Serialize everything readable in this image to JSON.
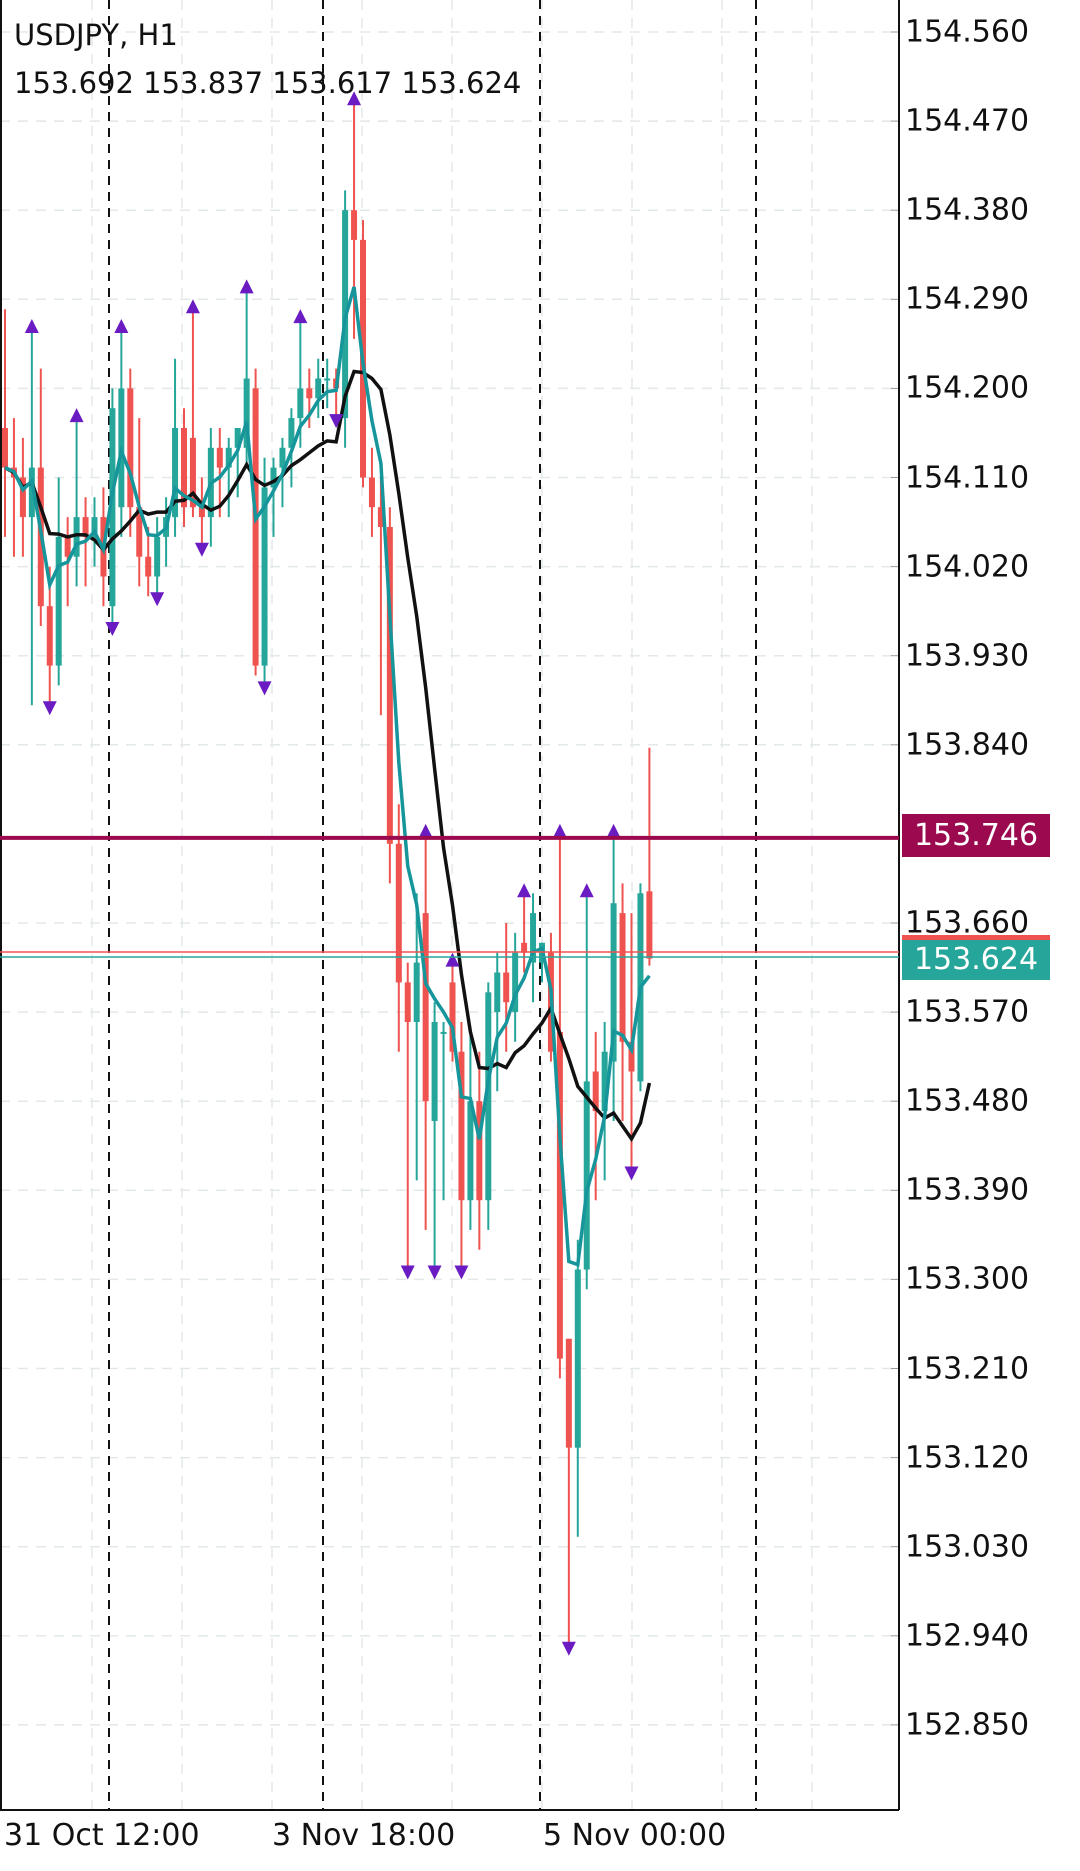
{
  "header": {
    "symbol_timeframe": "USDJPY, H1",
    "ohlc": "153.692 153.837 153.617 153.624"
  },
  "colors": {
    "bull": "#26a69a",
    "bear": "#ef5350",
    "ma_fast": "#16959b",
    "ma_slow": "#111111",
    "fractal": "#6a1bc2",
    "level_line": "#9b0a4f",
    "bid": "#ef5350",
    "ask": "#26a69a"
  },
  "chart_data": {
    "type": "candlestick",
    "ylim": [
      152.8,
      154.59
    ],
    "price_ticks": [
      "154.560",
      "154.470",
      "154.380",
      "154.290",
      "154.200",
      "154.110",
      "154.020",
      "153.930",
      "153.840",
      "153.660",
      "153.570",
      "153.480",
      "153.390",
      "153.300",
      "153.210",
      "153.120",
      "153.030",
      "152.940",
      "152.850"
    ],
    "time_labels": [
      "31 Oct 12:00",
      "3 Nov 18:00",
      "5 Nov 00:00"
    ],
    "level_price": "153.746",
    "bid_price": "153.624",
    "ohlc": [
      [
        154.16,
        154.28,
        154.05,
        154.12
      ],
      [
        154.12,
        154.17,
        154.03,
        154.11
      ],
      [
        154.11,
        154.15,
        154.03,
        154.07
      ],
      [
        154.07,
        154.26,
        153.88,
        154.12
      ],
      [
        154.12,
        154.22,
        153.96,
        153.98
      ],
      [
        153.98,
        154.02,
        153.88,
        153.92
      ],
      [
        153.92,
        154.11,
        153.9,
        154.05
      ],
      [
        154.05,
        154.07,
        153.98,
        154.03
      ],
      [
        154.03,
        154.17,
        154.0,
        154.07
      ],
      [
        154.07,
        154.09,
        154.0,
        154.05
      ],
      [
        154.05,
        154.09,
        154.02,
        154.07
      ],
      [
        154.07,
        154.1,
        153.98,
        154.01
      ],
      [
        153.98,
        154.2,
        153.96,
        154.18
      ],
      [
        154.08,
        154.26,
        154.05,
        154.2
      ],
      [
        154.2,
        154.22,
        154.05,
        154.08
      ],
      [
        154.08,
        154.17,
        154.0,
        154.03
      ],
      [
        154.03,
        154.06,
        153.99,
        154.01
      ],
      [
        154.01,
        154.07,
        153.99,
        154.05
      ],
      [
        154.05,
        154.09,
        154.02,
        154.07
      ],
      [
        154.07,
        154.23,
        154.05,
        154.16
      ],
      [
        154.16,
        154.18,
        154.06,
        154.08
      ],
      [
        154.15,
        154.28,
        154.07,
        154.08
      ],
      [
        154.08,
        154.11,
        154.04,
        154.07
      ],
      [
        154.07,
        154.16,
        154.04,
        154.14
      ],
      [
        154.14,
        154.16,
        154.07,
        154.12
      ],
      [
        154.12,
        154.15,
        154.07,
        154.14
      ],
      [
        154.14,
        154.16,
        154.09,
        154.16
      ],
      [
        154.14,
        154.3,
        154.12,
        154.21
      ],
      [
        154.2,
        154.22,
        153.91,
        153.92
      ],
      [
        153.92,
        154.13,
        153.9,
        154.1
      ],
      [
        154.1,
        154.13,
        154.05,
        154.12
      ],
      [
        154.12,
        154.15,
        154.08,
        154.14
      ],
      [
        154.14,
        154.18,
        154.1,
        154.17
      ],
      [
        154.17,
        154.27,
        154.14,
        154.2
      ],
      [
        154.2,
        154.22,
        154.16,
        154.19
      ],
      [
        154.19,
        154.23,
        154.17,
        154.21
      ],
      [
        154.21,
        154.23,
        154.18,
        154.21
      ],
      [
        154.21,
        154.22,
        154.17,
        154.2
      ],
      [
        154.17,
        154.4,
        154.14,
        154.38
      ],
      [
        154.38,
        154.49,
        154.25,
        154.35
      ],
      [
        154.35,
        154.37,
        154.1,
        154.11
      ],
      [
        154.11,
        154.14,
        154.05,
        154.08
      ],
      [
        154.08,
        154.11,
        153.87,
        154.06
      ],
      [
        154.06,
        154.08,
        153.7,
        153.74
      ],
      [
        153.74,
        153.78,
        153.53,
        153.6
      ],
      [
        153.6,
        153.62,
        153.31,
        153.56
      ],
      [
        153.56,
        153.69,
        153.4,
        153.62
      ],
      [
        153.67,
        153.75,
        153.35,
        153.48
      ],
      [
        153.46,
        153.58,
        153.31,
        153.56
      ],
      [
        153.55,
        153.56,
        153.38,
        153.55
      ],
      [
        153.6,
        153.62,
        153.52,
        153.53
      ],
      [
        153.53,
        153.56,
        153.31,
        153.38
      ],
      [
        153.38,
        153.55,
        153.35,
        153.48
      ],
      [
        153.48,
        153.53,
        153.33,
        153.38
      ],
      [
        153.38,
        153.6,
        153.35,
        153.59
      ],
      [
        153.57,
        153.63,
        153.49,
        153.61
      ],
      [
        153.61,
        153.66,
        153.53,
        153.58
      ],
      [
        153.57,
        153.65,
        153.54,
        153.63
      ],
      [
        153.64,
        153.69,
        153.61,
        153.63
      ],
      [
        153.62,
        153.69,
        153.58,
        153.67
      ],
      [
        153.62,
        153.64,
        153.6,
        153.64
      ],
      [
        153.63,
        153.65,
        153.52,
        153.53
      ],
      [
        153.55,
        153.75,
        153.2,
        153.22
      ],
      [
        153.24,
        153.24,
        152.93,
        153.13
      ],
      [
        153.13,
        153.34,
        153.04,
        153.31
      ],
      [
        153.31,
        153.69,
        153.29,
        153.5
      ],
      [
        153.51,
        153.55,
        153.38,
        153.47
      ],
      [
        153.47,
        153.56,
        153.4,
        153.53
      ],
      [
        153.52,
        153.75,
        153.46,
        153.68
      ],
      [
        153.67,
        153.7,
        153.46,
        153.54
      ],
      [
        153.54,
        153.67,
        153.41,
        153.51
      ],
      [
        153.5,
        153.7,
        153.49,
        153.69
      ],
      [
        153.692,
        153.837,
        153.617,
        153.624
      ]
    ],
    "fractals_up": [
      3,
      8,
      13,
      21,
      27,
      33,
      39,
      47,
      50,
      58,
      62,
      65,
      68
    ],
    "fractals_down": [
      5,
      12,
      17,
      22,
      29,
      37,
      45,
      48,
      51,
      63,
      70
    ],
    "ma_fast_period": 4,
    "ma_slow_period": 10
  }
}
